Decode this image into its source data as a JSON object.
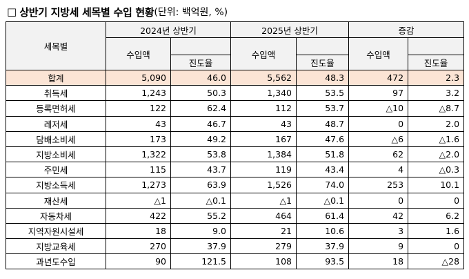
{
  "title": {
    "box": "□",
    "main": "상반기 지방세 세목별 수입 현황",
    "unit": "(단위: 백억원, %)"
  },
  "header": {
    "item_col": "세목별",
    "groups": [
      "2024년 상반기",
      "2025년 상반기",
      "증감"
    ],
    "amount": "수입액",
    "progress": "진도율"
  },
  "rows": [
    {
      "name": "합계",
      "a24": "5,090",
      "p24": "46.0",
      "a25": "5,562",
      "p25": "48.3",
      "da": "472",
      "dp": "2.3",
      "total": true
    },
    {
      "name": "취득세",
      "a24": "1,243",
      "p24": "50.3",
      "a25": "1,340",
      "p25": "53.5",
      "da": "97",
      "dp": "3.2"
    },
    {
      "name": "등록면허세",
      "a24": "122",
      "p24": "62.4",
      "a25": "112",
      "p25": "53.7",
      "da": "△10",
      "dp": "△8.7"
    },
    {
      "name": "레저세",
      "a24": "43",
      "p24": "46.7",
      "a25": "43",
      "p25": "48.7",
      "da": "0",
      "dp": "2.0"
    },
    {
      "name": "담배소비세",
      "a24": "173",
      "p24": "49.2",
      "a25": "167",
      "p25": "47.6",
      "da": "△6",
      "dp": "△1.6"
    },
    {
      "name": "지방소비세",
      "a24": "1,322",
      "p24": "53.8",
      "a25": "1,384",
      "p25": "51.8",
      "da": "62",
      "dp": "△2.0"
    },
    {
      "name": "주민세",
      "a24": "115",
      "p24": "43.7",
      "a25": "119",
      "p25": "43.4",
      "da": "4",
      "dp": "△0.3"
    },
    {
      "name": "지방소득세",
      "a24": "1,273",
      "p24": "63.9",
      "a25": "1,526",
      "p25": "74.0",
      "da": "253",
      "dp": "10.1"
    },
    {
      "name": "재산세",
      "a24": "△1",
      "p24": "△0.1",
      "a25": "△1",
      "p25": "△0.1",
      "da": "0",
      "dp": "0"
    },
    {
      "name": "자동차세",
      "a24": "422",
      "p24": "55.2",
      "a25": "464",
      "p25": "61.4",
      "da": "42",
      "dp": "6.2"
    },
    {
      "name": "지역자원시설세",
      "a24": "18",
      "p24": "9.0",
      "a25": "21",
      "p25": "10.6",
      "da": "3",
      "dp": "1.6"
    },
    {
      "name": "지방교육세",
      "a24": "270",
      "p24": "37.9",
      "a25": "279",
      "p25": "37.9",
      "da": "9",
      "dp": "0"
    },
    {
      "name": "과년도수입",
      "a24": "90",
      "p24": "121.5",
      "a25": "108",
      "p25": "93.5",
      "da": "18",
      "dp": "△28"
    }
  ]
}
